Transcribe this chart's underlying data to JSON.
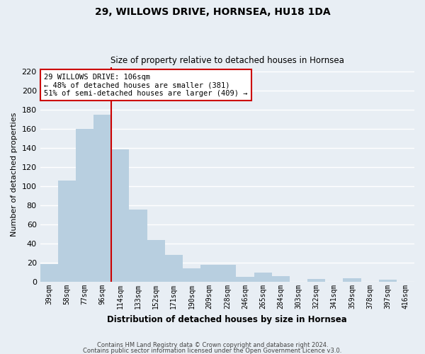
{
  "title": "29, WILLOWS DRIVE, HORNSEA, HU18 1DA",
  "subtitle": "Size of property relative to detached houses in Hornsea",
  "xlabel": "Distribution of detached houses by size in Hornsea",
  "ylabel": "Number of detached properties",
  "bar_labels": [
    "39sqm",
    "58sqm",
    "77sqm",
    "96sqm",
    "114sqm",
    "133sqm",
    "152sqm",
    "171sqm",
    "190sqm",
    "209sqm",
    "228sqm",
    "246sqm",
    "265sqm",
    "284sqm",
    "303sqm",
    "322sqm",
    "341sqm",
    "359sqm",
    "378sqm",
    "397sqm",
    "416sqm"
  ],
  "bar_values": [
    19,
    106,
    160,
    175,
    139,
    76,
    44,
    28,
    14,
    18,
    18,
    5,
    10,
    6,
    0,
    3,
    0,
    4,
    0,
    2,
    0
  ],
  "bar_color": "#b8cfe0",
  "vline_color": "#cc0000",
  "ylim": [
    0,
    225
  ],
  "yticks": [
    0,
    20,
    40,
    60,
    80,
    100,
    120,
    140,
    160,
    180,
    200,
    220
  ],
  "annotation_title": "29 WILLOWS DRIVE: 106sqm",
  "annotation_line1": "← 48% of detached houses are smaller (381)",
  "annotation_line2": "51% of semi-detached houses are larger (409) →",
  "annotation_box_color": "#ffffff",
  "annotation_box_edge": "#cc0000",
  "footer1": "Contains HM Land Registry data © Crown copyright and database right 2024.",
  "footer2": "Contains public sector information licensed under the Open Government Licence v3.0.",
  "background_color": "#e8eef4",
  "plot_background": "#e8eef4",
  "grid_color": "#ffffff"
}
